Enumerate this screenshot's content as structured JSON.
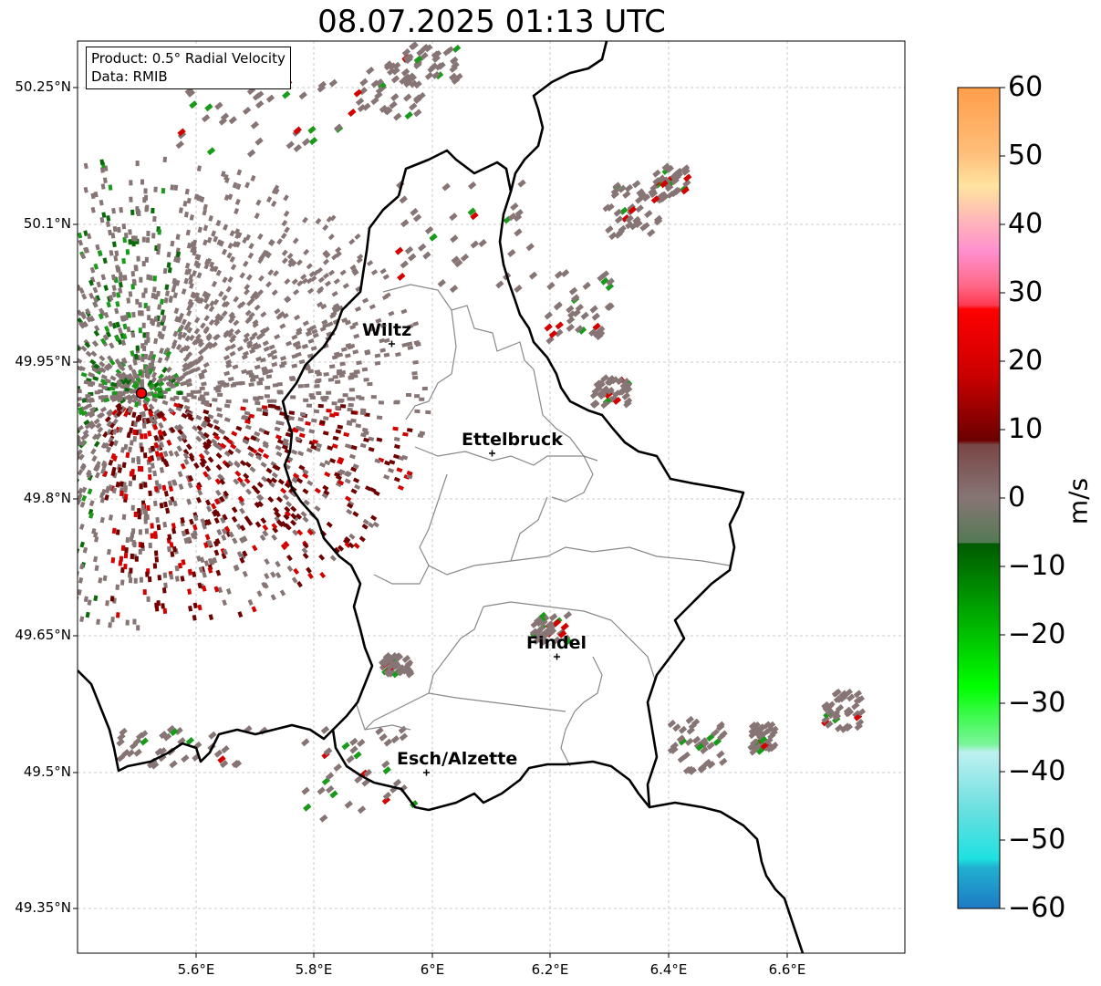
{
  "title": "08.07.2025 01:13 UTC",
  "info": {
    "product": "Product: 0.5° Radial Velocity",
    "data": "Data: RMIB"
  },
  "axes": {
    "lat_labels": [
      "50.25°N",
      "50.1°N",
      "49.95°N",
      "49.8°N",
      "49.65°N",
      "49.5°N",
      "49.35°N"
    ],
    "lon_labels": [
      "5.6°E",
      "5.8°E",
      "6°E",
      "6.2°E",
      "6.4°E",
      "6.6°E"
    ]
  },
  "cities": [
    {
      "name": "Wiltz"
    },
    {
      "name": "Ettelbruck"
    },
    {
      "name": "Findel"
    },
    {
      "name": "Esch/Alzette"
    }
  ],
  "colorbar": {
    "unit": "m/s",
    "ticks": [
      "60",
      "50",
      "40",
      "30",
      "20",
      "10",
      "0",
      "−10",
      "−20",
      "−30",
      "−40",
      "−50",
      "−60"
    ],
    "range": [
      -60,
      60
    ]
  },
  "colors": {
    "outbound_dark": "#6e0000",
    "outbound_red": "#d40000",
    "near_zero": "#877575",
    "inbound_green": "#1a9a1a",
    "inbound_dark": "#0a6a0a",
    "radar_site": "#ff0000"
  }
}
